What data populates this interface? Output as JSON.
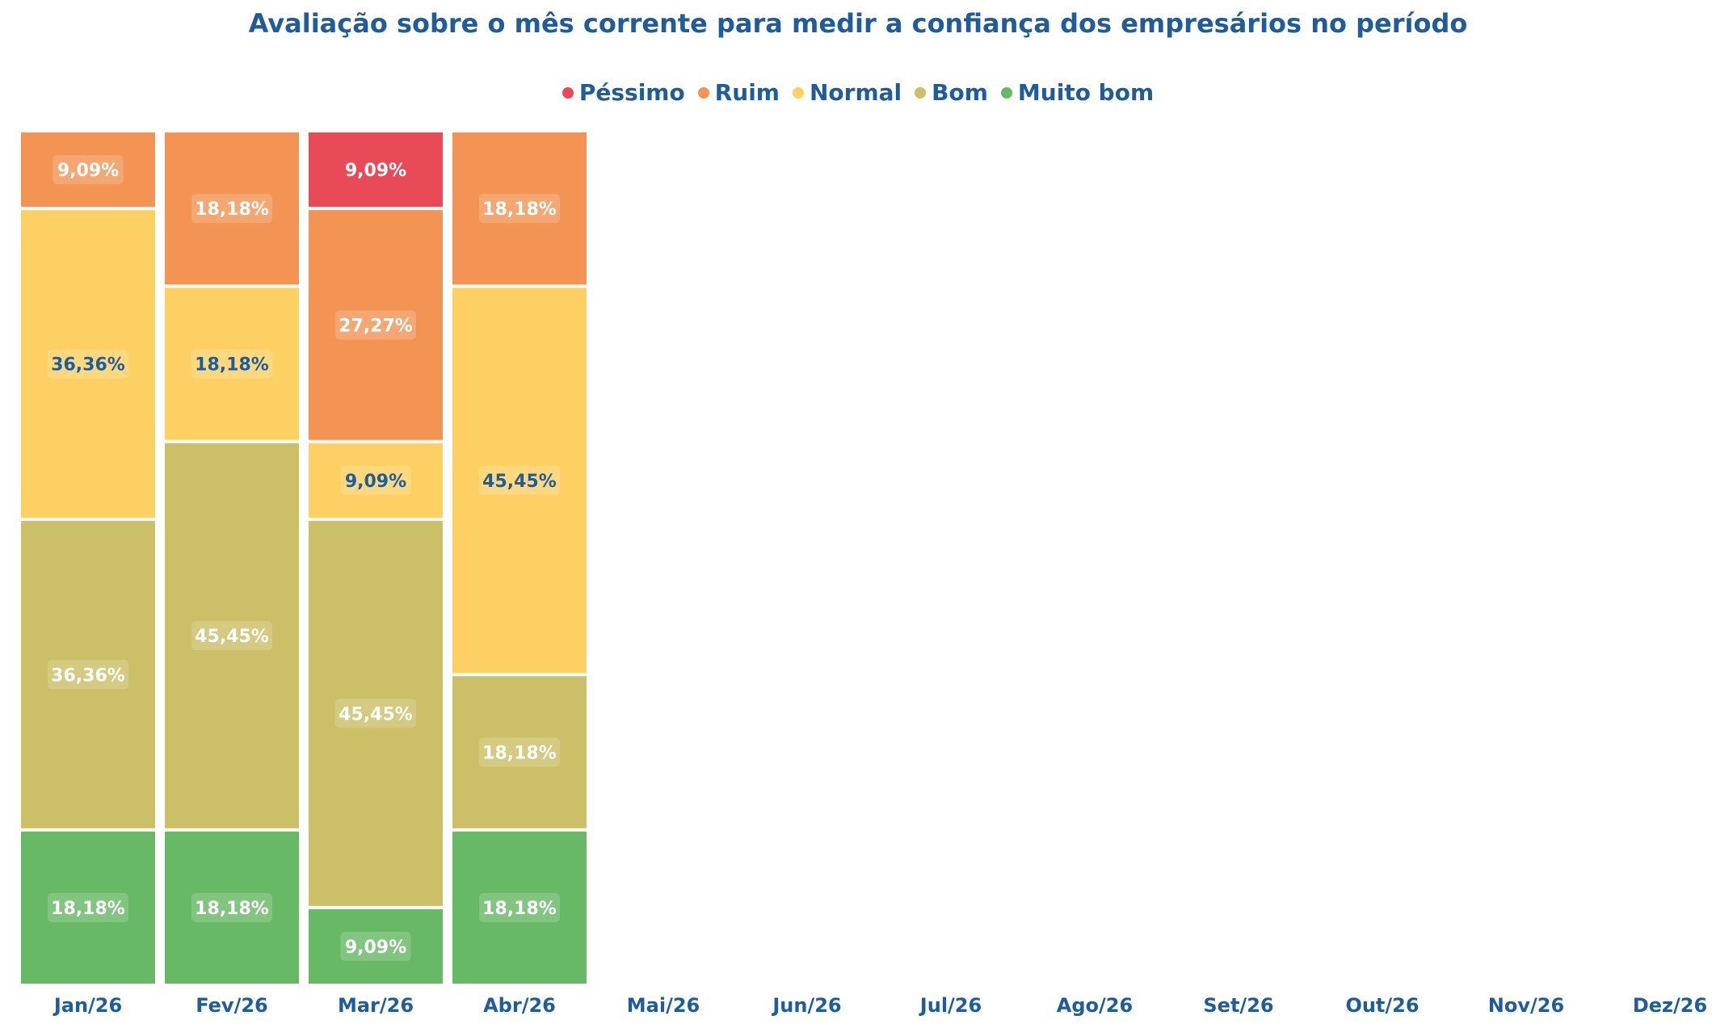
{
  "chart_data": {
    "type": "bar",
    "stacked": true,
    "title": "Avaliação sobre o mês corrente para medir a confiança dos empresários no período",
    "categories": [
      "Jan/26",
      "Fev/26",
      "Mar/26",
      "Abr/26",
      "Mai/26",
      "Jun/26",
      "Jul/26",
      "Ago/26",
      "Set/26",
      "Out/26",
      "Nov/26",
      "Dez/26"
    ],
    "legend_position": "top-center",
    "grid": false,
    "ylim": [
      0,
      100
    ],
    "series": [
      {
        "name": "Péssimo",
        "color": "#e84a57",
        "values": [
          0,
          0,
          9.09,
          0,
          null,
          null,
          null,
          null,
          null,
          null,
          null,
          null
        ],
        "labels": [
          "",
          "",
          "9,09%",
          "",
          "",
          "",
          "",
          "",
          "",
          "",
          "",
          ""
        ]
      },
      {
        "name": "Ruim",
        "color": "#f39455",
        "values": [
          9.09,
          18.18,
          27.27,
          18.18,
          null,
          null,
          null,
          null,
          null,
          null,
          null,
          null
        ],
        "labels": [
          "9,09%",
          "18,18%",
          "27,27%",
          "18,18%",
          "",
          "",
          "",
          "",
          "",
          "",
          "",
          ""
        ]
      },
      {
        "name": "Normal",
        "color": "#fdd063",
        "values": [
          36.36,
          18.18,
          9.09,
          45.45,
          null,
          null,
          null,
          null,
          null,
          null,
          null,
          null
        ],
        "labels": [
          "36,36%",
          "18,18%",
          "9,09%",
          "45,45%",
          "",
          "",
          "",
          "",
          "",
          "",
          "",
          ""
        ]
      },
      {
        "name": "Bom",
        "color": "#cbbf67",
        "values": [
          36.36,
          45.45,
          45.45,
          18.18,
          null,
          null,
          null,
          null,
          null,
          null,
          null,
          null
        ],
        "labels": [
          "36,36%",
          "45,45%",
          "45,45%",
          "18,18%",
          "",
          "",
          "",
          "",
          "",
          "",
          "",
          ""
        ]
      },
      {
        "name": "Muito bom",
        "color": "#67b965",
        "values": [
          18.18,
          18.18,
          9.09,
          18.18,
          null,
          null,
          null,
          null,
          null,
          null,
          null,
          null
        ],
        "labels": [
          "18,18%",
          "18,18%",
          "9,09%",
          "18,18%",
          "",
          "",
          "",
          "",
          "",
          "",
          "",
          ""
        ]
      }
    ]
  }
}
